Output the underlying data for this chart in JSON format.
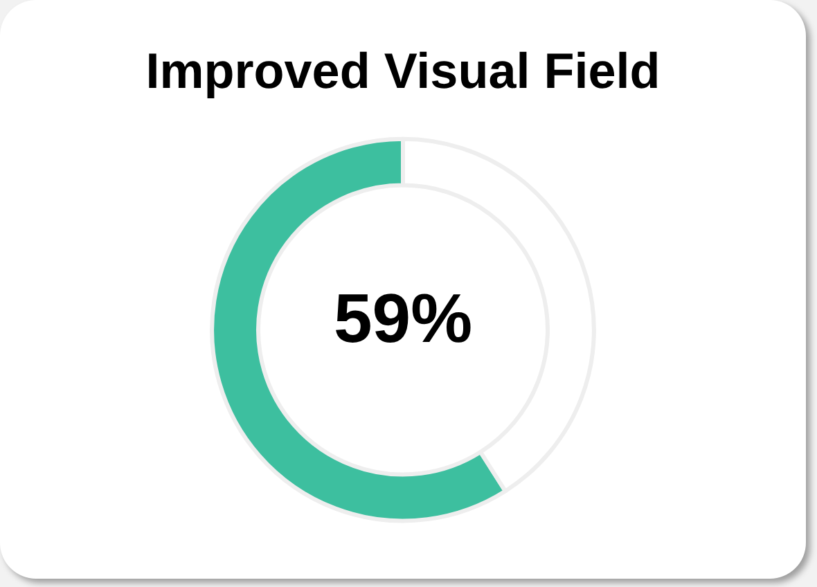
{
  "chart_data": {
    "type": "donut",
    "title": "Improved Visual Field",
    "categories": [
      null,
      null
    ],
    "values": [
      59,
      41
    ],
    "colors": [
      "#3dbf9f",
      "#ffffff"
    ],
    "annotations": [
      "59%"
    ]
  }
}
